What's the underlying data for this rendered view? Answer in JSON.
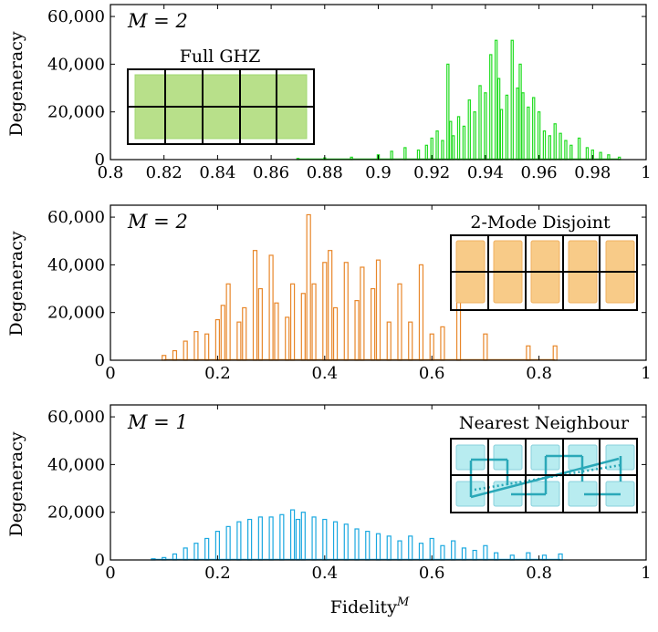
{
  "xlabel_base": "Fidelity",
  "xlabel_sup": "M",
  "colors": {
    "green": "#22dd22",
    "green_fill": "#b8e08a",
    "orange": "#e8872a",
    "orange_fill": "#f8cb88",
    "cyan": "#1aa8e0",
    "cyan_fill": "#b8ecf0",
    "teal": "#2aa8b8"
  },
  "panels": [
    {
      "m_label": "M = 2",
      "ylabel": "Degeneracy",
      "inset_title": "Full GHZ",
      "xticks": [
        "0.8",
        "0.82",
        "0.84",
        "0.86",
        "0.88",
        "0.9",
        "0.92",
        "0.94",
        "0.96",
        "0.98",
        "1"
      ],
      "yticks": [
        "0",
        "20,000",
        "40,000",
        "60,000"
      ]
    },
    {
      "m_label": "M = 2",
      "ylabel": "Degeneracy",
      "inset_title": "2-Mode Disjoint",
      "xticks": [
        "0",
        "0.2",
        "0.4",
        "0.6",
        "0.8",
        "1"
      ],
      "yticks": [
        "0",
        "20,000",
        "40,000",
        "60,000"
      ]
    },
    {
      "m_label": "M = 1",
      "ylabel": "Degeneracy",
      "inset_title": "Nearest Neighbour",
      "xticks": [
        "0",
        "0.2",
        "0.4",
        "0.6",
        "0.8",
        "1"
      ],
      "yticks": [
        "0",
        "20,000",
        "40,000",
        "60,000"
      ]
    }
  ],
  "chart_data": [
    {
      "type": "bar",
      "title": "",
      "xlabel": "",
      "ylabel": "Degeneracy",
      "xlim": [
        0.8,
        1.0
      ],
      "ylim": [
        0,
        65000
      ],
      "x": [
        0.87,
        0.88,
        0.89,
        0.9,
        0.905,
        0.91,
        0.915,
        0.918,
        0.92,
        0.922,
        0.924,
        0.926,
        0.927,
        0.928,
        0.93,
        0.932,
        0.934,
        0.936,
        0.938,
        0.94,
        0.942,
        0.944,
        0.945,
        0.946,
        0.948,
        0.95,
        0.952,
        0.953,
        0.954,
        0.956,
        0.958,
        0.96,
        0.962,
        0.964,
        0.966,
        0.968,
        0.97,
        0.972,
        0.975,
        0.978,
        0.98,
        0.983,
        0.986,
        0.99
      ],
      "values": [
        500,
        700,
        1000,
        2000,
        3500,
        5000,
        4000,
        6000,
        9000,
        12000,
        8000,
        40000,
        16000,
        10000,
        18000,
        14000,
        25000,
        20000,
        31000,
        28000,
        44000,
        50000,
        34000,
        21000,
        27000,
        50000,
        30000,
        40000,
        28000,
        22000,
        26000,
        20000,
        12000,
        10000,
        15000,
        11000,
        8000,
        6000,
        9000,
        5000,
        4000,
        3000,
        2000,
        1000
      ]
    },
    {
      "type": "bar",
      "title": "",
      "xlabel": "",
      "ylabel": "Degeneracy",
      "xlim": [
        0,
        1
      ],
      "ylim": [
        0,
        65000
      ],
      "x": [
        0.1,
        0.12,
        0.14,
        0.16,
        0.18,
        0.2,
        0.21,
        0.22,
        0.24,
        0.25,
        0.27,
        0.28,
        0.3,
        0.31,
        0.33,
        0.34,
        0.36,
        0.37,
        0.38,
        0.4,
        0.41,
        0.42,
        0.44,
        0.46,
        0.47,
        0.49,
        0.5,
        0.52,
        0.54,
        0.56,
        0.58,
        0.6,
        0.62,
        0.65,
        0.7,
        0.78,
        0.83
      ],
      "values": [
        2000,
        4000,
        8000,
        12000,
        11000,
        17000,
        23000,
        32000,
        16000,
        22000,
        46000,
        30000,
        44000,
        24000,
        18000,
        32000,
        28000,
        61000,
        32000,
        41000,
        46000,
        22000,
        41000,
        25000,
        39000,
        30000,
        42000,
        16000,
        32000,
        16000,
        40000,
        11000,
        14000,
        43000,
        11000,
        6000,
        6000
      ]
    },
    {
      "type": "bar",
      "title": "",
      "xlabel": "Fidelity^M",
      "ylabel": "Degeneracy",
      "xlim": [
        0,
        1
      ],
      "ylim": [
        0,
        65000
      ],
      "x": [
        0.08,
        0.1,
        0.12,
        0.14,
        0.16,
        0.18,
        0.2,
        0.22,
        0.24,
        0.26,
        0.28,
        0.3,
        0.32,
        0.34,
        0.35,
        0.36,
        0.38,
        0.4,
        0.42,
        0.44,
        0.46,
        0.48,
        0.5,
        0.52,
        0.54,
        0.56,
        0.58,
        0.6,
        0.62,
        0.64,
        0.66,
        0.68,
        0.7,
        0.72,
        0.75,
        0.78,
        0.81,
        0.84
      ],
      "values": [
        500,
        1000,
        2500,
        5000,
        7000,
        9000,
        12000,
        14000,
        16000,
        17000,
        18000,
        18000,
        19000,
        21000,
        17000,
        20000,
        18000,
        17000,
        16000,
        15000,
        13000,
        12000,
        11000,
        10000,
        8000,
        10000,
        7000,
        9000,
        6000,
        8000,
        5000,
        4000,
        6000,
        3000,
        2000,
        3000,
        2000,
        2500
      ]
    }
  ]
}
